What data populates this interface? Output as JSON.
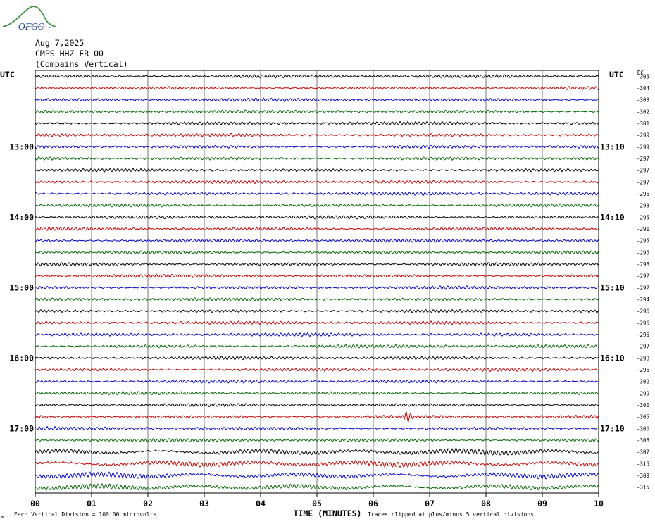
{
  "header": {
    "logo_text": "OFGC",
    "date": "Aug 7,2025",
    "station": "CMPS HHZ FR 00",
    "location": "(Compains Vertical)"
  },
  "chart_data": {
    "type": "line",
    "title": "",
    "left_axis_label": "UTC",
    "right_axis_label": "UTC",
    "dc_label": "DC",
    "xlabel": "TIME (MINUTES)",
    "xlim": [
      0,
      10
    ],
    "x_ticks": [
      "00",
      "01",
      "02",
      "03",
      "04",
      "05",
      "06",
      "07",
      "08",
      "09",
      "10"
    ],
    "left_hour_labels": [
      {
        "row": 6,
        "label": "13:00"
      },
      {
        "row": 12,
        "label": "14:00"
      },
      {
        "row": 18,
        "label": "15:00"
      },
      {
        "row": 24,
        "label": "16:00"
      },
      {
        "row": 30,
        "label": "17:00"
      }
    ],
    "right_hour_labels": [
      {
        "row": 6,
        "label": "13:10"
      },
      {
        "row": 12,
        "label": "14:10"
      },
      {
        "row": 18,
        "label": "15:10"
      },
      {
        "row": 24,
        "label": "16:10"
      },
      {
        "row": 30,
        "label": "17:10"
      }
    ],
    "trace_colors": [
      "#000000",
      "#cc0000",
      "#0000cc",
      "#006600"
    ],
    "dc_offsets": [
      -305,
      -304,
      -303,
      -302,
      -301,
      -299,
      -299,
      -297,
      -297,
      -297,
      -296,
      -293,
      -295,
      -291,
      -295,
      -295,
      -298,
      -297,
      -297,
      -294,
      -296,
      -296,
      -295,
      -297,
      -298,
      -296,
      -302,
      -299,
      -300,
      -305,
      -306,
      -308,
      -307,
      -315,
      -309,
      -315
    ],
    "events": [
      {
        "row": 29,
        "minute": 6.6,
        "amplitude": "large"
      }
    ],
    "footer_scale": "Each Vertical Division =  100.00 microvolts",
    "footer_clip": "Traces clipped at plus/minus 5 vertical divisions",
    "footer_mark": "M"
  }
}
